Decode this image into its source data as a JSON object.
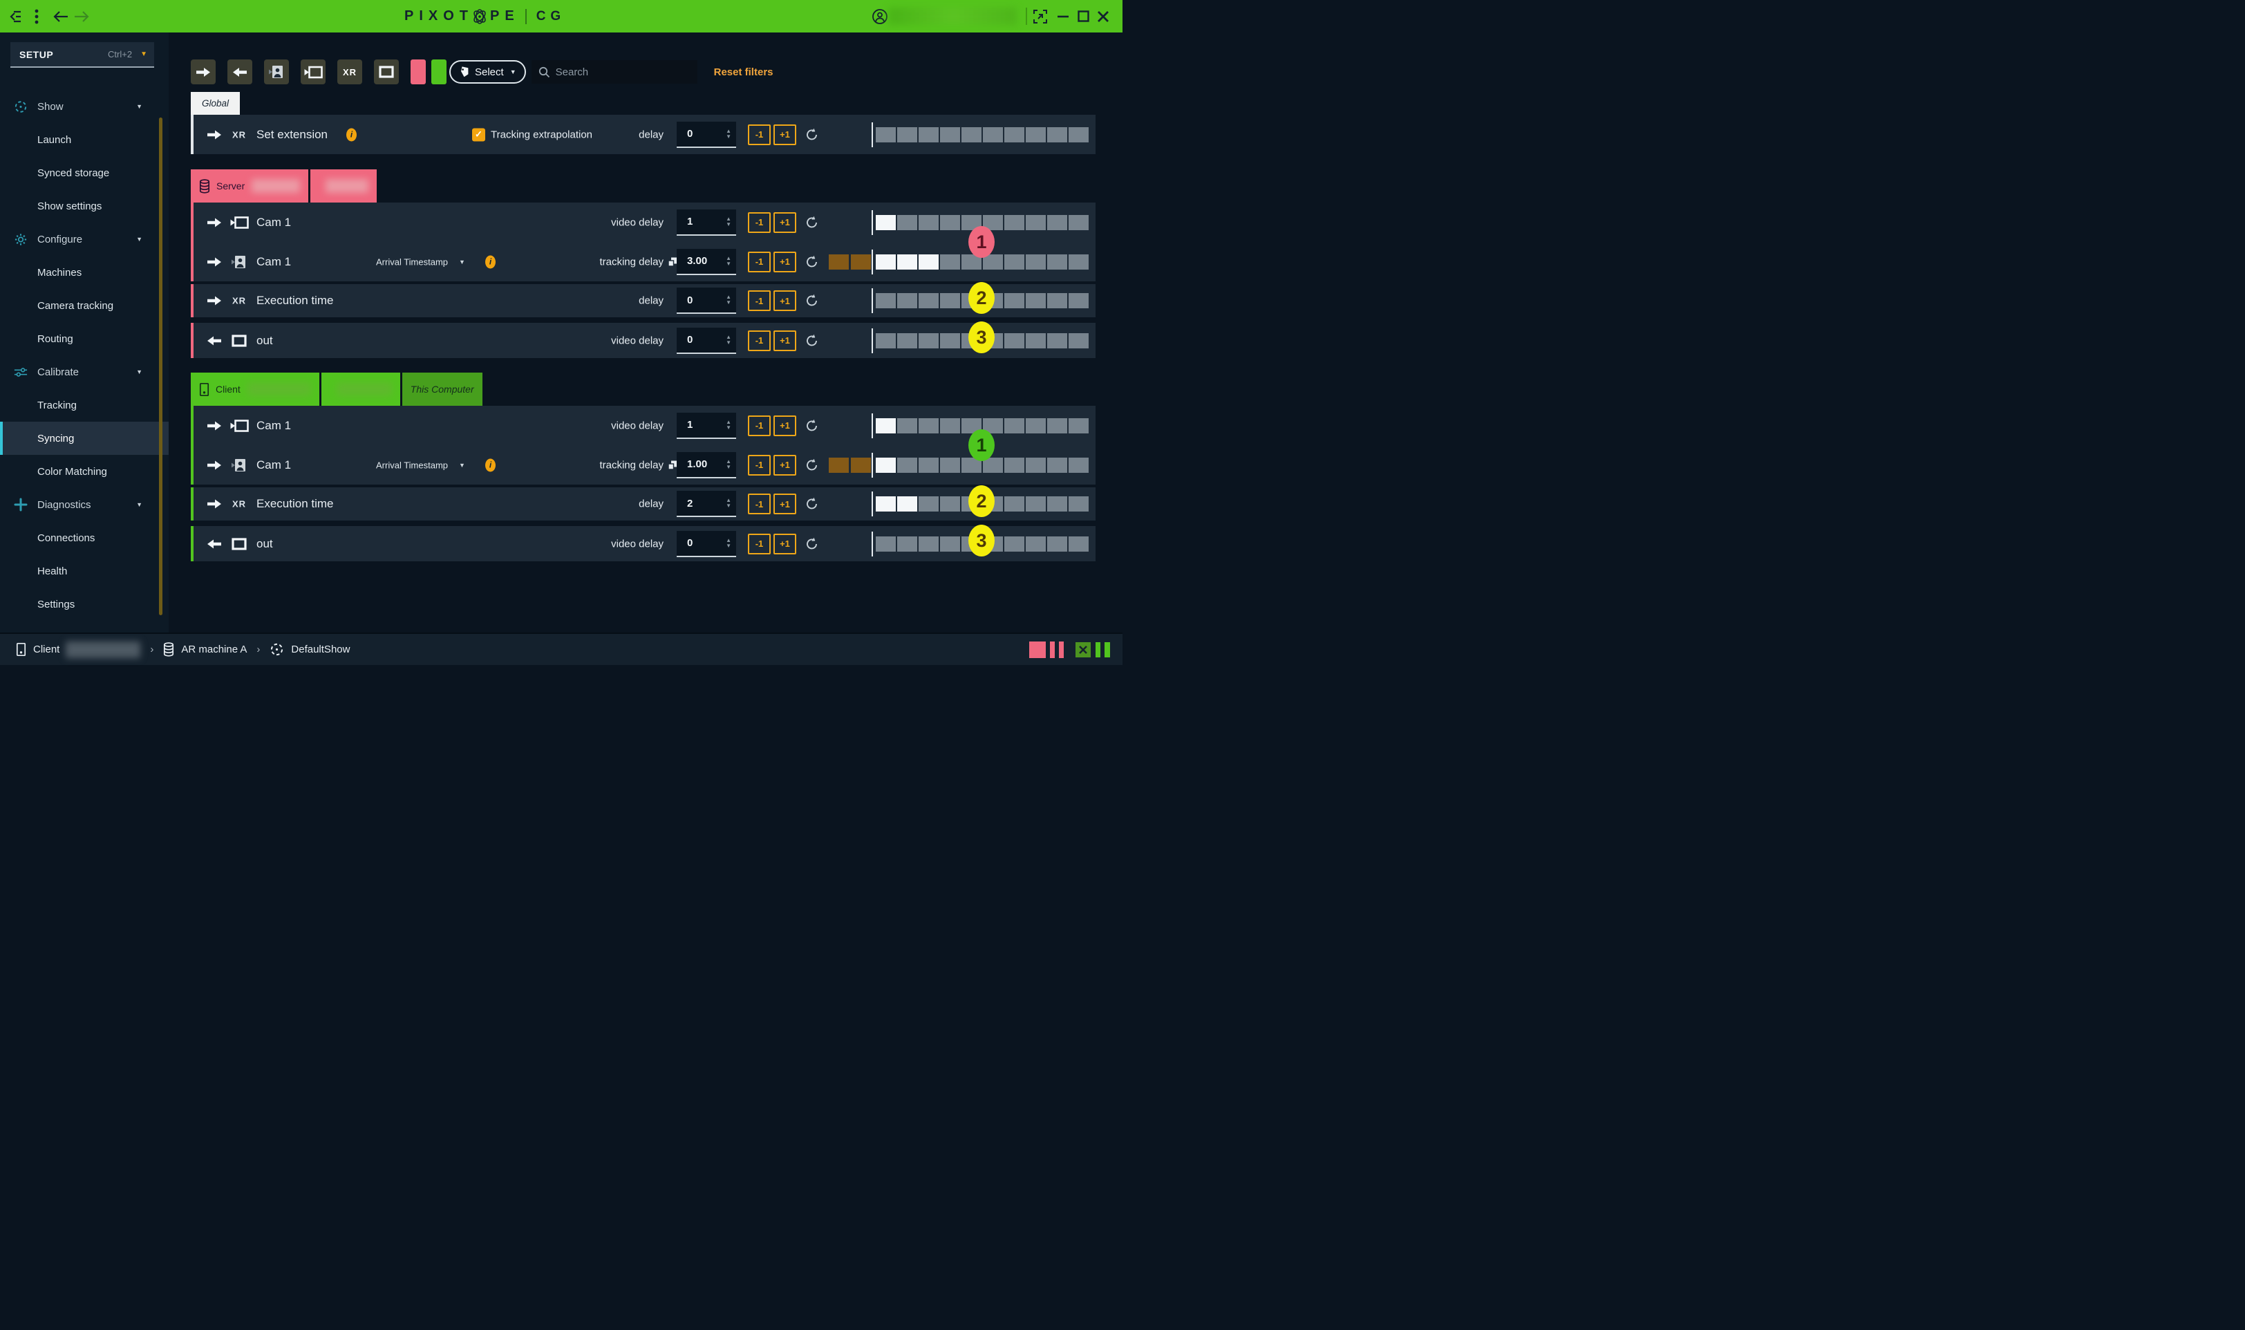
{
  "colors": {
    "titlebar_green": "#54c41c",
    "pink": "#f0687f",
    "client_green": "#52c41f",
    "accent_yellow": "#efa718",
    "reset_orange": "#f0a43c",
    "teal": "#2e9db2",
    "row_bg": "#1d2a37",
    "square_gray": "#78848e",
    "square_white": "#f4f7f9",
    "square_brown": "#855a17",
    "badge_yellow": "#f4ee0c",
    "badge_pink": "#f0687f",
    "badge_green": "#4ec61e"
  },
  "titlebar": {
    "logo_left": "PIXOT",
    "logo_right": "PE",
    "product": "CG",
    "icons": [
      "collapse-sidebar-icon",
      "kebab-menu-icon",
      "nav-back-icon",
      "nav-forward-icon",
      "user-account-icon",
      "popout-icon",
      "minimize-icon",
      "maximize-icon",
      "close-icon"
    ]
  },
  "sidebar": {
    "header": {
      "label": "SETUP",
      "shortcut": "Ctrl+2"
    },
    "items": [
      {
        "type": "group",
        "label": "Show",
        "icon": "show-icon"
      },
      {
        "type": "item",
        "label": "Launch"
      },
      {
        "type": "item",
        "label": "Synced storage"
      },
      {
        "type": "item",
        "label": "Show settings"
      },
      {
        "type": "group",
        "label": "Configure",
        "icon": "gear-icon"
      },
      {
        "type": "item",
        "label": "Machines"
      },
      {
        "type": "item",
        "label": "Camera tracking"
      },
      {
        "type": "item",
        "label": "Routing"
      },
      {
        "type": "group",
        "label": "Calibrate",
        "icon": "sliders-icon"
      },
      {
        "type": "item",
        "label": "Tracking"
      },
      {
        "type": "item",
        "label": "Syncing",
        "selected": true
      },
      {
        "type": "item",
        "label": "Color Matching"
      },
      {
        "type": "group",
        "label": "Diagnostics",
        "icon": "diagnostics-icon"
      },
      {
        "type": "item",
        "label": "Connections"
      },
      {
        "type": "item",
        "label": "Health"
      },
      {
        "type": "item",
        "label": "Settings"
      }
    ]
  },
  "toolbar": {
    "filter_buttons": [
      "arrow-right-icon",
      "arrow-left-icon",
      "tracking-camera-icon",
      "video-camera-icon",
      "xr-filter",
      "monitor-icon"
    ],
    "xr_label": "XR",
    "swatches": [
      "#f0687f",
      "#52c41f"
    ],
    "select_label": "Select",
    "search_placeholder": "Search",
    "reset_label": "Reset filters"
  },
  "controls": {
    "minus": "-1",
    "plus": "+1"
  },
  "sections": {
    "global": {
      "tab": "Global",
      "row": {
        "dir": "right",
        "kind": "xr",
        "xr": "XR",
        "label": "Set extension",
        "has_info": true,
        "checkbox": {
          "checked": true,
          "label": "Tracking extrapolation"
        },
        "delay_label": "delay",
        "value": "0",
        "squares": {
          "brown": 0,
          "white": 0,
          "gray": 10
        }
      }
    },
    "server": {
      "accent": "#f0687f",
      "tabs": [
        {
          "icon": "database-icon",
          "label": "Server",
          "redacted": true
        },
        {
          "redacted": true
        }
      ],
      "rows": [
        {
          "dir": "right",
          "kind": "video-camera",
          "label": "Cam 1",
          "delay_label": "video delay",
          "value": "1",
          "squares": {
            "brown": 0,
            "white": 1,
            "gray": 9
          }
        },
        {
          "dir": "right",
          "kind": "tracking-camera",
          "label": "Cam 1",
          "dropdown": "Arrival Timestamp",
          "has_info": true,
          "delay_label": "tracking delay",
          "has_copy": true,
          "value": "3.00",
          "squares": {
            "brown": 2,
            "white": 3,
            "gray": 7
          }
        },
        {
          "dir": "right",
          "kind": "xr",
          "xr": "XR",
          "label": "Execution time",
          "delay_label": "delay",
          "value": "0",
          "squares": {
            "brown": 0,
            "white": 0,
            "gray": 10
          }
        },
        {
          "dir": "left",
          "kind": "monitor",
          "label": "out",
          "delay_label": "video delay",
          "value": "0",
          "squares": {
            "brown": 0,
            "white": 0,
            "gray": 10
          }
        }
      ],
      "badges": [
        {
          "label": "1",
          "bg": "#f0687f",
          "fg": "#5f1021",
          "pos": "between"
        },
        {
          "label": "2",
          "bg": "#f4ee0c",
          "fg": "#4e3a06",
          "pos": "exec"
        },
        {
          "label": "3",
          "bg": "#f4ee0c",
          "fg": "#4e3a06",
          "pos": "out"
        }
      ]
    },
    "client": {
      "accent": "#52c41f",
      "tabs": [
        {
          "icon": "client-device-icon",
          "label": "Client",
          "redacted": true
        },
        {
          "redacted": true
        },
        {
          "label": "This Computer",
          "variant": "dark"
        }
      ],
      "rows": [
        {
          "dir": "right",
          "kind": "video-camera",
          "label": "Cam 1",
          "delay_label": "video delay",
          "value": "1",
          "squares": {
            "brown": 0,
            "white": 1,
            "gray": 9
          }
        },
        {
          "dir": "right",
          "kind": "tracking-camera",
          "label": "Cam 1",
          "dropdown": "Arrival Timestamp",
          "has_info": true,
          "delay_label": "tracking delay",
          "has_copy": true,
          "value": "1.00",
          "squares": {
            "brown": 2,
            "white": 1,
            "gray": 9
          }
        },
        {
          "dir": "right",
          "kind": "xr",
          "xr": "XR",
          "label": "Execution time",
          "delay_label": "delay",
          "value": "2",
          "squares": {
            "brown": 0,
            "white": 2,
            "gray": 8
          }
        },
        {
          "dir": "left",
          "kind": "monitor",
          "label": "out",
          "delay_label": "video delay",
          "value": "0",
          "squares": {
            "brown": 0,
            "white": 0,
            "gray": 10
          }
        }
      ],
      "badges": [
        {
          "label": "1",
          "bg": "#4ec61e",
          "fg": "#164006",
          "pos": "between"
        },
        {
          "label": "2",
          "bg": "#f4ee0c",
          "fg": "#4e3a06",
          "pos": "exec"
        },
        {
          "label": "3",
          "bg": "#f4ee0c",
          "fg": "#4e3a06",
          "pos": "out"
        }
      ]
    }
  },
  "statusbar": {
    "breadcrumb": [
      {
        "icon": "client-device-icon",
        "label": "Client",
        "redacted": true
      },
      {
        "icon": "database-icon",
        "label": "AR machine A"
      },
      {
        "icon": "show-icon",
        "label": "DefaultShow"
      }
    ],
    "lights": [
      "pink-square",
      "pink-bar",
      "pink-bar",
      "green-x-square",
      "green-bar",
      "green-bar"
    ]
  }
}
